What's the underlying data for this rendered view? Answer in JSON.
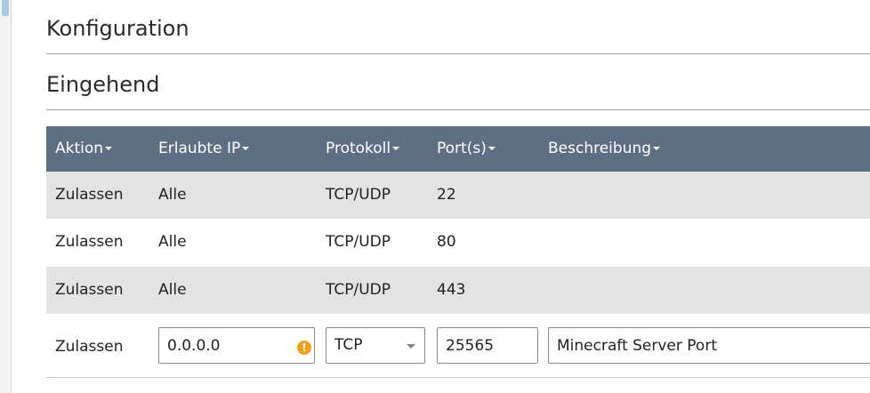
{
  "page": {
    "title": "Konfiguration",
    "section_title": "Eingehend"
  },
  "table": {
    "columns": [
      "Aktion",
      "Erlaubte IP",
      "Protokoll",
      "Port(s)",
      "Beschreibung"
    ],
    "rows": [
      {
        "action": "Zulassen",
        "ip": "Alle",
        "protocol": "TCP/UDP",
        "ports": "22",
        "description": ""
      },
      {
        "action": "Zulassen",
        "ip": "Alle",
        "protocol": "TCP/UDP",
        "ports": "80",
        "description": ""
      },
      {
        "action": "Zulassen",
        "ip": "Alle",
        "protocol": "TCP/UDP",
        "ports": "443",
        "description": ""
      }
    ],
    "new_rule": {
      "action": "Zulassen",
      "ip_value": "0.0.0.0",
      "warning_symbol": "!",
      "protocol_selected": "TCP",
      "ports_value": "25565",
      "description_value": "Minecraft Server Port"
    }
  },
  "colors": {
    "header_bg": "#5f6f83",
    "row_shade": "#e3e3e3",
    "warning": "#f0a01a"
  },
  "icons": {
    "sort": "caret-down-icon",
    "warning": "warning-icon",
    "select": "chevron-down-icon"
  }
}
